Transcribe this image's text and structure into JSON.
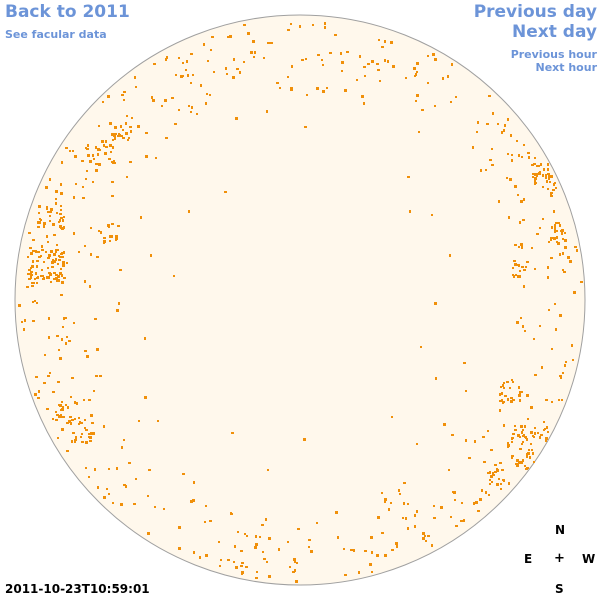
{
  "nav": {
    "back_label": "Back to 2011",
    "facular_label": "See facular data",
    "prev_day_label": "Previous day",
    "next_day_label": "Next day",
    "prev_hour_label": "Previous hour",
    "next_hour_label": "Next hour"
  },
  "timestamp": "2011-10-23T10:59:01",
  "compass": {
    "north": "N",
    "east": "E",
    "center": "+",
    "west": "W",
    "south": "S"
  },
  "colors": {
    "link": "#6c94d8",
    "disk_fill": "#fff8ec",
    "disk_stroke": "#a0a0a0",
    "faculae": "#f0900a"
  }
}
